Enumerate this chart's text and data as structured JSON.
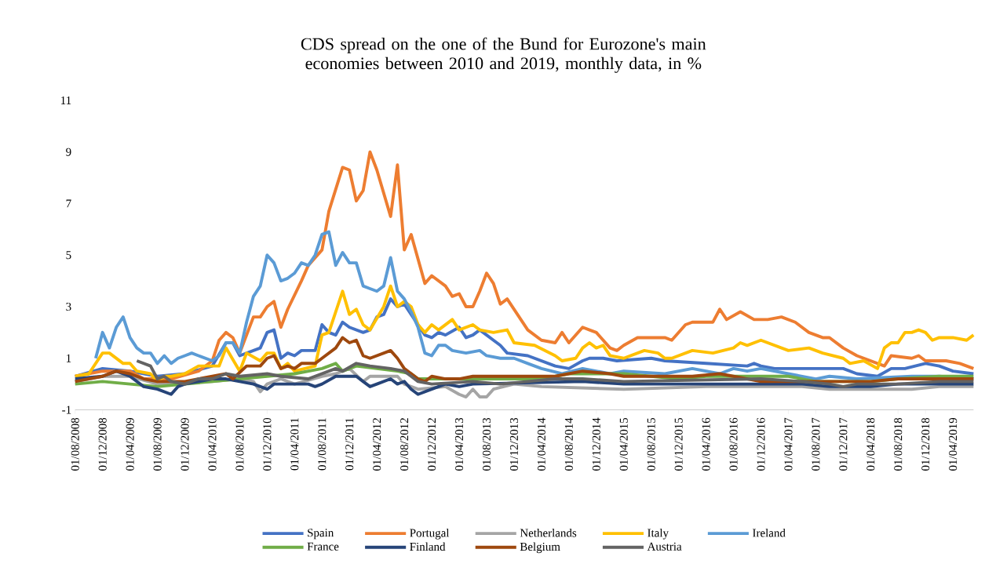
{
  "chart_data": {
    "type": "line",
    "title": "CDS spread on the one of the Bund for Eurozone's main economies between 2010 and 2019, monthly data, in %",
    "xlim": [
      "2008-08",
      "2019-07"
    ],
    "ylim": [
      -1,
      11
    ],
    "yticks": [
      -1,
      1,
      3,
      5,
      7,
      9,
      11
    ],
    "legend": "bottom",
    "xticks": [
      {
        "value": "2008-08",
        "label": "01/08/2008"
      },
      {
        "value": "2008-12",
        "label": "01/12/2008"
      },
      {
        "value": "2009-04",
        "label": "01/04/2009"
      },
      {
        "value": "2009-08",
        "label": "01/08/2009"
      },
      {
        "value": "2009-12",
        "label": "01/12/2009"
      },
      {
        "value": "2010-04",
        "label": "01/04/2010"
      },
      {
        "value": "2010-08",
        "label": "01/08/2010"
      },
      {
        "value": "2010-12",
        "label": "01/12/2010"
      },
      {
        "value": "2011-04",
        "label": "01/04/2011"
      },
      {
        "value": "2011-08",
        "label": "01/08/2011"
      },
      {
        "value": "2011-12",
        "label": "01/12/2011"
      },
      {
        "value": "2012-04",
        "label": "01/04/2012"
      },
      {
        "value": "2012-08",
        "label": "01/08/2012"
      },
      {
        "value": "2012-12",
        "label": "01/12/2012"
      },
      {
        "value": "2013-04",
        "label": "01/04/2013"
      },
      {
        "value": "2013-08",
        "label": "01/08/2013"
      },
      {
        "value": "2013-12",
        "label": "01/12/2013"
      },
      {
        "value": "2014-04",
        "label": "01/04/2014"
      },
      {
        "value": "2014-08",
        "label": "01/08/2014"
      },
      {
        "value": "2014-12",
        "label": "01/12/2014"
      },
      {
        "value": "2015-04",
        "label": "01/04/2015"
      },
      {
        "value": "2015-08",
        "label": "01/08/2015"
      },
      {
        "value": "2015-12",
        "label": "01/12/2015"
      },
      {
        "value": "2016-04",
        "label": "01/04/2016"
      },
      {
        "value": "2016-08",
        "label": "01/08/2016"
      },
      {
        "value": "2016-12",
        "label": "01/12/2016"
      },
      {
        "value": "2017-04",
        "label": "01/04/2017"
      },
      {
        "value": "2017-08",
        "label": "01/08/2017"
      },
      {
        "value": "2017-12",
        "label": "01/12/2017"
      },
      {
        "value": "2018-04",
        "label": "01/04/2018"
      },
      {
        "value": "2018-08",
        "label": "01/08/2018"
      },
      {
        "value": "2018-12",
        "label": "01/12/2018"
      },
      {
        "value": "2019-04",
        "label": "01/04/2019"
      }
    ],
    "series": [
      {
        "name": "Spain",
        "color": "#4472c4",
        "x": [
          "2008-08",
          "2008-12",
          "2009-04",
          "2009-08",
          "2009-12",
          "2010-04",
          "2010-06",
          "2010-07",
          "2010-08",
          "2010-11",
          "2010-12",
          "2011-01",
          "2011-02",
          "2011-03",
          "2011-04",
          "2011-05",
          "2011-07",
          "2011-08",
          "2011-09",
          "2011-10",
          "2011-11",
          "2011-12",
          "2012-02",
          "2012-03",
          "2012-04",
          "2012-05",
          "2012-06",
          "2012-07",
          "2012-08",
          "2012-09",
          "2012-10",
          "2012-11",
          "2012-12",
          "2013-01",
          "2013-02",
          "2013-04",
          "2013-05",
          "2013-06",
          "2013-07",
          "2013-08",
          "2013-09",
          "2013-10",
          "2013-11",
          "2014-02",
          "2014-04",
          "2014-06",
          "2014-08",
          "2014-10",
          "2014-11",
          "2015-01",
          "2015-03",
          "2015-08",
          "2015-10",
          "2016-04",
          "2016-10",
          "2016-11",
          "2016-12",
          "2017-02",
          "2017-12",
          "2018-02",
          "2018-05",
          "2018-07",
          "2018-09",
          "2018-12",
          "2019-02",
          "2019-04",
          "2019-07"
        ],
        "values": [
          0.3,
          0.6,
          0.5,
          0.3,
          0.4,
          0.7,
          1.6,
          1.6,
          1.1,
          1.4,
          2.0,
          2.1,
          1.0,
          1.2,
          1.1,
          1.3,
          1.3,
          2.3,
          2.0,
          1.9,
          2.4,
          2.2,
          2.0,
          2.1,
          2.6,
          2.7,
          3.3,
          3.0,
          3.1,
          2.7,
          2.3,
          1.9,
          1.8,
          2.0,
          1.9,
          2.2,
          1.8,
          1.9,
          2.1,
          1.9,
          1.7,
          1.5,
          1.2,
          1.1,
          0.9,
          0.7,
          0.6,
          0.9,
          1.0,
          1.0,
          0.9,
          1.0,
          0.9,
          0.8,
          0.7,
          0.8,
          0.7,
          0.6,
          0.6,
          0.4,
          0.3,
          0.6,
          0.6,
          0.8,
          0.7,
          0.5,
          0.4
        ]
      },
      {
        "name": "Portugal",
        "color": "#ed7d31",
        "x": [
          "2008-08",
          "2008-12",
          "2009-04",
          "2009-06",
          "2009-10",
          "2010-02",
          "2010-04",
          "2010-05",
          "2010-06",
          "2010-07",
          "2010-08",
          "2010-10",
          "2010-11",
          "2010-12",
          "2011-01",
          "2011-02",
          "2011-03",
          "2011-05",
          "2011-06",
          "2011-08",
          "2011-09",
          "2011-11",
          "2011-12",
          "2012-01",
          "2012-02",
          "2012-03",
          "2012-04",
          "2012-06",
          "2012-07",
          "2012-08",
          "2012-09",
          "2012-11",
          "2012-12",
          "2013-02",
          "2013-03",
          "2013-04",
          "2013-05",
          "2013-06",
          "2013-07",
          "2013-08",
          "2013-09",
          "2013-10",
          "2013-11",
          "2014-02",
          "2014-04",
          "2014-06",
          "2014-07",
          "2014-08",
          "2014-10",
          "2014-11",
          "2014-12",
          "2015-02",
          "2015-03",
          "2015-04",
          "2015-06",
          "2015-08",
          "2015-10",
          "2015-11",
          "2016-01",
          "2016-02",
          "2016-05",
          "2016-06",
          "2016-07",
          "2016-09",
          "2016-11",
          "2017-01",
          "2017-03",
          "2017-05",
          "2017-07",
          "2017-09",
          "2017-10",
          "2017-12",
          "2018-02",
          "2018-04",
          "2018-06",
          "2018-07",
          "2018-10",
          "2018-11",
          "2018-12",
          "2019-03",
          "2019-05",
          "2019-07"
        ],
        "values": [
          0.3,
          0.5,
          0.5,
          0.2,
          0.2,
          0.5,
          0.9,
          1.7,
          2.0,
          1.8,
          1.2,
          2.6,
          2.6,
          3.0,
          3.2,
          2.2,
          2.9,
          4.0,
          4.6,
          5.2,
          6.7,
          8.4,
          8.3,
          7.1,
          7.5,
          9.0,
          8.3,
          6.5,
          8.5,
          5.2,
          5.8,
          3.9,
          4.2,
          3.8,
          3.4,
          3.5,
          3.0,
          3.0,
          3.6,
          4.3,
          3.9,
          3.1,
          3.3,
          2.1,
          1.7,
          1.6,
          2.0,
          1.6,
          2.2,
          2.1,
          2.0,
          1.4,
          1.3,
          1.5,
          1.8,
          1.8,
          1.8,
          1.7,
          2.3,
          2.4,
          2.4,
          2.9,
          2.5,
          2.8,
          2.5,
          2.5,
          2.6,
          2.4,
          2.0,
          1.8,
          1.8,
          1.4,
          1.1,
          0.9,
          0.7,
          1.1,
          1.0,
          1.1,
          0.9,
          0.9,
          0.8,
          0.6
        ]
      },
      {
        "name": "Netherlands",
        "color": "#a5a5a5",
        "x": [
          "2008-08",
          "2008-12",
          "2009-04",
          "2009-08",
          "2010-04",
          "2010-08",
          "2010-10",
          "2010-11",
          "2010-12",
          "2011-02",
          "2011-04",
          "2011-08",
          "2011-10",
          "2011-12",
          "2012-02",
          "2012-03",
          "2012-07",
          "2012-08",
          "2012-10",
          "2013-02",
          "2013-04",
          "2013-05",
          "2013-06",
          "2013-07",
          "2013-08",
          "2013-09",
          "2013-12",
          "2014-04",
          "2015-04",
          "2016-04",
          "2017-06",
          "2017-10",
          "2018-10",
          "2019-02",
          "2019-07"
        ],
        "values": [
          0.1,
          0.3,
          0.3,
          0.0,
          0.1,
          0.2,
          0.1,
          -0.3,
          0.0,
          0.2,
          0.0,
          0.3,
          0.4,
          0.6,
          0.1,
          0.3,
          0.3,
          0.0,
          -0.2,
          -0.1,
          -0.4,
          -0.5,
          -0.2,
          -0.5,
          -0.5,
          -0.2,
          0.0,
          -0.1,
          -0.2,
          -0.1,
          -0.1,
          -0.2,
          -0.2,
          -0.1,
          -0.1
        ]
      },
      {
        "name": "Italy",
        "color": "#ffc000",
        "x": [
          "2008-08",
          "2008-10",
          "2008-12",
          "2009-01",
          "2009-03",
          "2009-04",
          "2009-05",
          "2009-07",
          "2009-08",
          "2009-09",
          "2009-10",
          "2009-12",
          "2010-02",
          "2010-05",
          "2010-06",
          "2010-08",
          "2010-09",
          "2010-11",
          "2010-12",
          "2011-01",
          "2011-02",
          "2011-03",
          "2011-04",
          "2011-07",
          "2011-08",
          "2011-09",
          "2011-11",
          "2011-12",
          "2012-01",
          "2012-02",
          "2012-03",
          "2012-05",
          "2012-06",
          "2012-07",
          "2012-08",
          "2012-09",
          "2012-10",
          "2012-11",
          "2012-12",
          "2013-01",
          "2013-03",
          "2013-04",
          "2013-06",
          "2013-07",
          "2013-09",
          "2013-11",
          "2013-12",
          "2014-03",
          "2014-06",
          "2014-07",
          "2014-09",
          "2014-10",
          "2014-11",
          "2014-12",
          "2015-01",
          "2015-02",
          "2015-04",
          "2015-07",
          "2015-09",
          "2015-10",
          "2015-11",
          "2016-02",
          "2016-05",
          "2016-08",
          "2016-09",
          "2016-10",
          "2016-12",
          "2017-02",
          "2017-04",
          "2017-07",
          "2017-09",
          "2017-12",
          "2018-01",
          "2018-03",
          "2018-05",
          "2018-06",
          "2018-07",
          "2018-08",
          "2018-09",
          "2018-10",
          "2018-11",
          "2018-12",
          "2019-01",
          "2019-02",
          "2019-04",
          "2019-06",
          "2019-07"
        ],
        "values": [
          0.3,
          0.4,
          1.2,
          1.2,
          0.8,
          0.8,
          0.5,
          0.4,
          0.1,
          0.3,
          0.3,
          0.4,
          0.7,
          0.7,
          1.4,
          0.5,
          1.2,
          0.9,
          1.2,
          1.2,
          0.6,
          0.8,
          0.5,
          0.7,
          1.9,
          2.0,
          3.6,
          2.7,
          2.9,
          2.3,
          2.1,
          3.0,
          3.8,
          3.0,
          3.2,
          3.0,
          2.3,
          2.0,
          2.3,
          2.1,
          2.5,
          2.1,
          2.3,
          2.1,
          2.0,
          2.1,
          1.6,
          1.5,
          1.1,
          0.9,
          1.0,
          1.4,
          1.6,
          1.4,
          1.5,
          1.1,
          1.0,
          1.3,
          1.2,
          1.0,
          1.0,
          1.3,
          1.2,
          1.4,
          1.6,
          1.5,
          1.7,
          1.5,
          1.3,
          1.4,
          1.2,
          1.0,
          0.8,
          0.9,
          0.6,
          1.4,
          1.6,
          1.6,
          2.0,
          2.0,
          2.1,
          2.0,
          1.7,
          1.8,
          1.8,
          1.7,
          1.9
        ]
      },
      {
        "name": "Ireland",
        "color": "#5b9bd5",
        "x": [
          "2008-11",
          "2008-12",
          "2009-01",
          "2009-02",
          "2009-03",
          "2009-04",
          "2009-05",
          "2009-06",
          "2009-07",
          "2009-08",
          "2009-09",
          "2009-10",
          "2009-11",
          "2009-12",
          "2010-01",
          "2010-02",
          "2010-04",
          "2010-05",
          "2010-06",
          "2010-07",
          "2010-08",
          "2010-09",
          "2010-10",
          "2010-11",
          "2010-12",
          "2011-01",
          "2011-02",
          "2011-03",
          "2011-04",
          "2011-05",
          "2011-06",
          "2011-07",
          "2011-08",
          "2011-09",
          "2011-10",
          "2011-11",
          "2011-12",
          "2012-01",
          "2012-02",
          "2012-03",
          "2012-04",
          "2012-05",
          "2012-06",
          "2012-07",
          "2012-08",
          "2012-09",
          "2012-10",
          "2012-11",
          "2012-12",
          "2013-01",
          "2013-02",
          "2013-03",
          "2013-05",
          "2013-07",
          "2013-08",
          "2013-10",
          "2013-12",
          "2014-02",
          "2014-04",
          "2014-07",
          "2014-10",
          "2015-02",
          "2015-04",
          "2015-10",
          "2016-02",
          "2016-06",
          "2016-08",
          "2016-10",
          "2016-12",
          "2017-04",
          "2017-08",
          "2017-10",
          "2018-02",
          "2018-10",
          "2019-02",
          "2019-07"
        ],
        "values": [
          1.0,
          2.0,
          1.4,
          2.2,
          2.6,
          1.8,
          1.4,
          1.2,
          1.2,
          0.8,
          1.1,
          0.8,
          1.0,
          1.1,
          1.2,
          1.1,
          0.9,
          1.1,
          1.6,
          1.6,
          1.2,
          2.4,
          3.4,
          3.8,
          5.0,
          4.7,
          4.0,
          4.1,
          4.3,
          4.7,
          4.6,
          5.0,
          5.8,
          5.9,
          4.6,
          5.1,
          4.7,
          4.7,
          3.8,
          3.7,
          3.6,
          3.8,
          4.9,
          3.6,
          3.3,
          2.8,
          2.2,
          1.2,
          1.1,
          1.5,
          1.5,
          1.3,
          1.2,
          1.3,
          1.1,
          1.0,
          1.0,
          0.8,
          0.6,
          0.4,
          0.6,
          0.4,
          0.5,
          0.4,
          0.6,
          0.4,
          0.6,
          0.5,
          0.6,
          0.4,
          0.2,
          0.3,
          0.2,
          0.3,
          0.3,
          0.2
        ]
      },
      {
        "name": "France",
        "color": "#70ad47",
        "x": [
          "2008-08",
          "2008-12",
          "2009-04",
          "2009-08",
          "2009-12",
          "2010-04",
          "2010-08",
          "2010-12",
          "2011-04",
          "2011-08",
          "2011-10",
          "2011-11",
          "2012-01",
          "2012-04",
          "2012-07",
          "2012-09",
          "2012-10",
          "2013-08",
          "2014-04",
          "2014-08",
          "2015-04",
          "2015-08",
          "2015-12",
          "2016-04",
          "2017-04",
          "2017-06",
          "2017-08",
          "2018-04",
          "2018-08",
          "2019-02",
          "2019-07"
        ],
        "values": [
          0.0,
          0.1,
          0.0,
          -0.1,
          0.0,
          0.1,
          0.2,
          0.3,
          0.4,
          0.6,
          0.8,
          0.5,
          0.7,
          0.6,
          0.5,
          0.4,
          0.2,
          0.2,
          0.2,
          0.4,
          0.4,
          0.3,
          0.2,
          0.3,
          0.3,
          0.2,
          0.1,
          0.1,
          0.2,
          0.3,
          0.3
        ]
      },
      {
        "name": "Finland",
        "color": "#264478",
        "x": [
          "2008-08",
          "2008-12",
          "2009-02",
          "2009-04",
          "2009-06",
          "2009-08",
          "2009-10",
          "2009-11",
          "2009-12",
          "2010-04",
          "2010-06",
          "2010-08",
          "2010-10",
          "2010-12",
          "2011-01",
          "2011-06",
          "2011-07",
          "2011-08",
          "2011-10",
          "2012-01",
          "2012-02",
          "2012-03",
          "2012-04",
          "2012-06",
          "2012-07",
          "2012-08",
          "2012-09",
          "2012-10",
          "2012-12",
          "2013-02",
          "2013-04",
          "2013-06",
          "2014-10",
          "2015-04",
          "2017-06",
          "2017-10",
          "2018-04",
          "2018-08",
          "2019-07"
        ],
        "values": [
          0.2,
          0.3,
          0.5,
          0.3,
          -0.1,
          -0.2,
          -0.4,
          -0.1,
          0.0,
          0.2,
          0.2,
          0.1,
          0.0,
          -0.2,
          0.0,
          0.0,
          -0.1,
          0.0,
          0.3,
          0.3,
          0.1,
          -0.1,
          0.0,
          0.2,
          0.0,
          0.1,
          -0.2,
          -0.4,
          -0.2,
          0.0,
          -0.1,
          0.0,
          0.1,
          0.0,
          0.0,
          -0.1,
          -0.1,
          0.0,
          0.0
        ]
      },
      {
        "name": "Belgium",
        "color": "#9e480e",
        "x": [
          "2008-08",
          "2008-12",
          "2009-02",
          "2009-04",
          "2009-06",
          "2009-08",
          "2009-12",
          "2010-04",
          "2010-06",
          "2010-07",
          "2010-09",
          "2010-11",
          "2010-12",
          "2011-01",
          "2011-02",
          "2011-03",
          "2011-04",
          "2011-05",
          "2011-07",
          "2011-08",
          "2011-10",
          "2011-11",
          "2011-12",
          "2012-01",
          "2012-02",
          "2012-03",
          "2012-06",
          "2012-07",
          "2012-08",
          "2012-10",
          "2012-11",
          "2012-12",
          "2013-02",
          "2013-04",
          "2013-06",
          "2013-12",
          "2014-06",
          "2014-10",
          "2015-02",
          "2015-04",
          "2016-02",
          "2016-06",
          "2016-08",
          "2016-12",
          "2018-04",
          "2018-08",
          "2019-07"
        ],
        "values": [
          0.1,
          0.3,
          0.5,
          0.4,
          0.2,
          0.1,
          0.1,
          0.3,
          0.4,
          0.2,
          0.7,
          0.7,
          1.0,
          1.1,
          0.6,
          0.7,
          0.6,
          0.8,
          0.8,
          1.0,
          1.4,
          1.8,
          1.6,
          1.7,
          1.1,
          1.0,
          1.3,
          1.0,
          0.6,
          0.2,
          0.1,
          0.3,
          0.2,
          0.2,
          0.3,
          0.3,
          0.3,
          0.5,
          0.4,
          0.3,
          0.3,
          0.4,
          0.3,
          0.1,
          0.1,
          0.2,
          0.2
        ]
      },
      {
        "name": "Austria",
        "color": "#636363",
        "x": [
          "2009-05",
          "2009-07",
          "2009-08",
          "2009-09",
          "2009-10",
          "2009-12",
          "2010-02",
          "2010-04",
          "2010-06",
          "2010-08",
          "2010-12",
          "2011-02",
          "2011-06",
          "2011-08",
          "2011-10",
          "2011-11",
          "2012-01",
          "2012-03",
          "2012-06",
          "2012-08",
          "2012-09",
          "2012-10",
          "2012-12",
          "2013-06",
          "2013-10",
          "2014-02",
          "2014-06",
          "2014-10",
          "2015-04",
          "2016-12",
          "2017-06",
          "2017-10",
          "2017-12",
          "2018-02",
          "2018-08",
          "2019-02",
          "2019-07"
        ],
        "values": [
          0.9,
          0.7,
          0.2,
          0.3,
          0.1,
          0.0,
          0.2,
          0.2,
          0.4,
          0.3,
          0.4,
          0.3,
          0.2,
          0.4,
          0.6,
          0.5,
          0.8,
          0.7,
          0.6,
          0.5,
          0.3,
          0.1,
          0.0,
          0.1,
          0.0,
          0.1,
          0.2,
          0.2,
          0.1,
          0.2,
          0.1,
          0.0,
          -0.1,
          0.0,
          0.0,
          0.1,
          0.1
        ]
      }
    ]
  }
}
